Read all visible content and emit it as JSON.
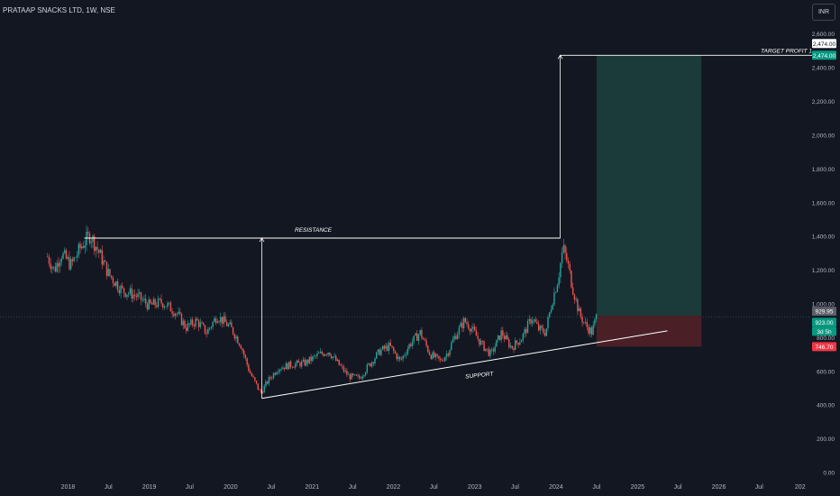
{
  "header": {
    "title": "PRATAAP SNACKS LTD, 1W, NSE",
    "currency": "INR"
  },
  "colors": {
    "background": "#131722",
    "up": "#26a69a",
    "down": "#ef5350",
    "profit_zone": "#1b3b3a",
    "loss_zone": "#4a2026",
    "line": "#ffffff",
    "price_up_label": "#089981",
    "price_down_label": "#f23645",
    "last_price_label": "#5d606b"
  },
  "chart_data": {
    "type": "candlestick",
    "y_axis": {
      "range": [
        0,
        2620
      ],
      "ticks": [
        "0.00",
        "200.00",
        "400.00",
        "600.00",
        "800.00",
        "1,000.00",
        "1,200.00",
        "1,400.00",
        "1,600.00",
        "1,800.00",
        "2,000.00",
        "2,200.00",
        "2,400.00",
        "2,600.00"
      ],
      "tick_values": [
        0,
        200,
        400,
        600,
        800,
        1000,
        1200,
        1400,
        1600,
        1800,
        2000,
        2200,
        2400,
        2600
      ]
    },
    "x_axis": {
      "range": [
        "2017-07-01",
        "2027-04-01"
      ],
      "ticks": [
        {
          "label": "2018",
          "date": "2018-01-01"
        },
        {
          "label": "Jul",
          "date": "2018-07-01"
        },
        {
          "label": "2019",
          "date": "2019-01-01"
        },
        {
          "label": "Jul",
          "date": "2019-07-01"
        },
        {
          "label": "2020",
          "date": "2020-01-01"
        },
        {
          "label": "Jul",
          "date": "2020-07-01"
        },
        {
          "label": "2021",
          "date": "2021-01-01"
        },
        {
          "label": "Jul",
          "date": "2021-07-01"
        },
        {
          "label": "2022",
          "date": "2022-01-01"
        },
        {
          "label": "Jul",
          "date": "2022-07-01"
        },
        {
          "label": "2023",
          "date": "2023-01-01"
        },
        {
          "label": "Jul",
          "date": "2023-07-01"
        },
        {
          "label": "2024",
          "date": "2024-01-01"
        },
        {
          "label": "Jul",
          "date": "2024-07-01"
        },
        {
          "label": "2025",
          "date": "2025-01-01"
        },
        {
          "label": "Jul",
          "date": "2025-07-01"
        },
        {
          "label": "2026",
          "date": "2026-01-01"
        },
        {
          "label": "Jul",
          "date": "2026-07-01"
        },
        {
          "label": "202",
          "date": "2027-01-01"
        }
      ]
    },
    "price_path": [
      {
        "date": "2017-10-01",
        "close": 1280
      },
      {
        "date": "2017-11-01",
        "close": 1200
      },
      {
        "date": "2017-12-01",
        "close": 1300
      },
      {
        "date": "2018-01-15",
        "close": 1230
      },
      {
        "date": "2018-03-01",
        "close": 1340
      },
      {
        "date": "2018-04-10",
        "close": 1410
      },
      {
        "date": "2018-05-15",
        "close": 1320
      },
      {
        "date": "2018-07-01",
        "close": 1180
      },
      {
        "date": "2018-09-01",
        "close": 1080
      },
      {
        "date": "2018-11-01",
        "close": 1050
      },
      {
        "date": "2019-01-01",
        "close": 990
      },
      {
        "date": "2019-03-01",
        "close": 1010
      },
      {
        "date": "2019-05-01",
        "close": 950
      },
      {
        "date": "2019-06-15",
        "close": 860
      },
      {
        "date": "2019-08-01",
        "close": 900
      },
      {
        "date": "2019-09-15",
        "close": 830
      },
      {
        "date": "2019-11-01",
        "close": 930
      },
      {
        "date": "2020-01-01",
        "close": 860
      },
      {
        "date": "2020-02-15",
        "close": 760
      },
      {
        "date": "2020-03-25",
        "close": 600
      },
      {
        "date": "2020-05-15",
        "close": 470
      },
      {
        "date": "2020-06-15",
        "close": 540
      },
      {
        "date": "2020-08-01",
        "close": 620
      },
      {
        "date": "2020-10-01",
        "close": 640
      },
      {
        "date": "2020-12-01",
        "close": 650
      },
      {
        "date": "2021-02-01",
        "close": 700
      },
      {
        "date": "2021-03-15",
        "close": 720
      },
      {
        "date": "2021-05-01",
        "close": 640
      },
      {
        "date": "2021-06-15",
        "close": 570
      },
      {
        "date": "2021-08-01",
        "close": 560
      },
      {
        "date": "2021-09-15",
        "close": 640
      },
      {
        "date": "2021-11-01",
        "close": 720
      },
      {
        "date": "2021-12-15",
        "close": 750
      },
      {
        "date": "2022-02-01",
        "close": 660
      },
      {
        "date": "2022-03-15",
        "close": 760
      },
      {
        "date": "2022-05-01",
        "close": 830
      },
      {
        "date": "2022-06-15",
        "close": 700
      },
      {
        "date": "2022-08-01",
        "close": 660
      },
      {
        "date": "2022-09-01",
        "close": 710
      },
      {
        "date": "2022-10-01",
        "close": 800
      },
      {
        "date": "2022-11-15",
        "close": 900
      },
      {
        "date": "2022-12-15",
        "close": 860
      },
      {
        "date": "2023-02-01",
        "close": 760
      },
      {
        "date": "2023-03-15",
        "close": 700
      },
      {
        "date": "2023-05-01",
        "close": 830
      },
      {
        "date": "2023-06-15",
        "close": 740
      },
      {
        "date": "2023-08-01",
        "close": 800
      },
      {
        "date": "2023-09-15",
        "close": 920
      },
      {
        "date": "2023-10-15",
        "close": 850
      },
      {
        "date": "2023-11-15",
        "close": 830
      },
      {
        "date": "2023-12-15",
        "close": 1020
      },
      {
        "date": "2024-01-10",
        "close": 1150
      },
      {
        "date": "2024-02-01",
        "close": 1330
      },
      {
        "date": "2024-02-20",
        "close": 1250
      },
      {
        "date": "2024-03-15",
        "close": 1100
      },
      {
        "date": "2024-04-15",
        "close": 940
      },
      {
        "date": "2024-05-15",
        "close": 870
      },
      {
        "date": "2024-06-10",
        "close": 830
      },
      {
        "date": "2024-06-30",
        "close": 923
      }
    ],
    "drawings": {
      "resistance": {
        "label": "RESISTANCE",
        "price": 1390,
        "from": "2018-03-15",
        "to": "2024-01-20"
      },
      "support": {
        "label": "SUPPORT",
        "from": {
          "date": "2020-05-20",
          "price": 440
        },
        "to": {
          "date": "2025-05-15",
          "price": 840
        }
      },
      "measure_low": {
        "date": "2020-05-20",
        "from": 440,
        "to": 1390
      },
      "measure_high": {
        "date": "2024-01-20",
        "from": 1390,
        "to": 2474
      },
      "target_line": {
        "label": "TARGET PROFIT 1",
        "price": 2474,
        "from": "2024-01-20",
        "to": "2027-04-01"
      },
      "position": {
        "from": "2024-07-01",
        "to": "2025-10-15",
        "entry": 930,
        "target": 2474,
        "stop": 746.7
      }
    },
    "price_labels": {
      "target_top": "2,474.00",
      "target": "2,474.00",
      "entry": "929.95",
      "current": "923.00",
      "countdown": "3d 5h",
      "stop": "746.70"
    }
  }
}
